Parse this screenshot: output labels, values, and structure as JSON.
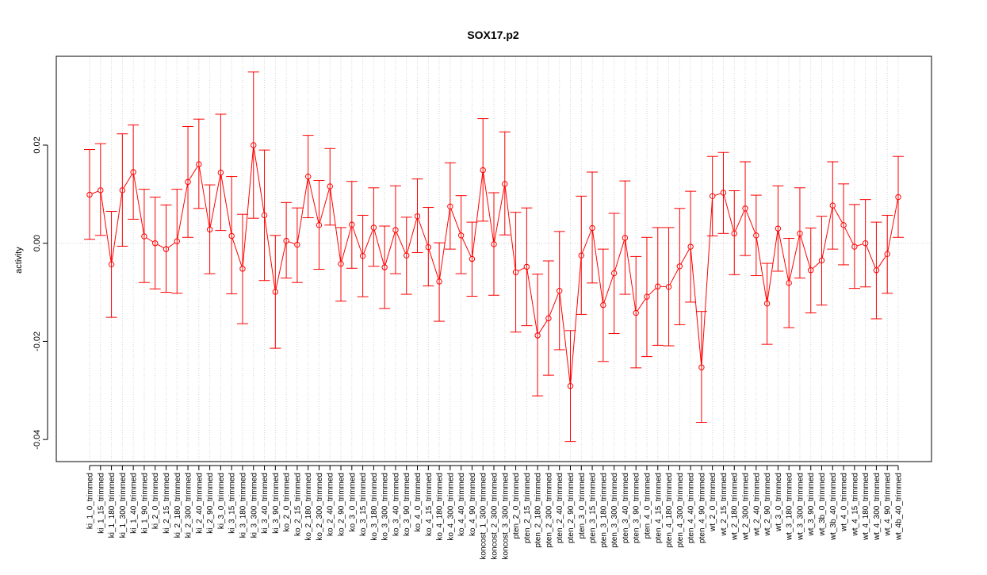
{
  "chart_data": {
    "type": "line",
    "title": "SOX17.p2",
    "xlabel": "",
    "ylabel": "activity",
    "ylim": [
      -0.0445,
      0.0381
    ],
    "y_ticks": [
      -0.04,
      -0.02,
      0.0,
      0.02
    ],
    "y_tick_labels": [
      "-0.04",
      "-0.02",
      "0.00",
      "0.02"
    ],
    "grid": true,
    "reference_line_y": 0.0,
    "color": "#ff0000",
    "series": [
      {
        "categories": [
          "ki_1_0_trimmed",
          "ki_1_15_trimmed",
          "ki_1_180_trimmed",
          "ki_1_300_trimmed",
          "ki_1_40_trimmed",
          "ki_1_90_trimmed",
          "ki_2_0_trimmed",
          "ki_2_15_trimmed",
          "ki_2_180_trimmed",
          "ki_2_300_trimmed",
          "ki_2_40_trimmed",
          "ki_2_90_trimmed",
          "ki_3_0_trimmed",
          "ki_3_15_trimmed",
          "ki_3_180_trimmed",
          "ki_3_300_trimmed",
          "ki_3_40_trimmed",
          "ki_3_90_trimmed",
          "ko_2_0_trimmed",
          "ko_2_15_trimmed",
          "ko_2_180_trimmed",
          "ko_2_300_trimmed",
          "ko_2_40_trimmed",
          "ko_2_90_trimmed",
          "ko_3_0_trimmed",
          "ko_3_15_trimmed",
          "ko_3_180_trimmed",
          "ko_3_300_trimmed",
          "ko_3_40_trimmed",
          "ko_3_90_trimmed",
          "ko_4_0_trimmed",
          "ko_4_15_trimmed",
          "ko_4_180_trimmed",
          "ko_4_300_trimmed",
          "ko_4_40_trimmed",
          "ko_4_90_trimmed",
          "koncost_1_300_trimmed",
          "koncost_2_300_trimmed",
          "koncost_3_300_trimmed",
          "pten_2_0_trimmed",
          "pten_2_15_trimmed",
          "pten_2_180_trimmed",
          "pten_2_300_trimmed",
          "pten_2_40_trimmed",
          "pten_2_90_trimmed",
          "pten_3_0_trimmed",
          "pten_3_15_trimmed",
          "pten_3_180_trimmed",
          "pten_3_300_trimmed",
          "pten_3_40_trimmed",
          "pten_3_90_trimmed",
          "pten_4_0_trimmed",
          "pten_4_15_trimmed",
          "pten_4_180_trimmed",
          "pten_4_300_trimmed",
          "pten_4_40_trimmed",
          "pten_4_90_trimmed",
          "wt_2_0_trimmed",
          "wt_2_15_trimmed",
          "wt_2_180_trimmed",
          "wt_2_300_trimmed",
          "wt_2_40_trimmed",
          "wt_2_90_trimmed",
          "wt_3_0_trimmed",
          "wt_3_180_trimmed",
          "wt_3_300_trimmed",
          "wt_3_90_trimmed",
          "wt_3b_0_trimmed",
          "wt_3b_40_trimmed",
          "wt_4_0_trimmed",
          "wt_4_15_trimmed",
          "wt_4_180_trimmed",
          "wt_4_300_trimmed",
          "wt_4_90_trimmed",
          "wt_4b_40_trimmed"
        ],
        "values": [
          0.0099,
          0.0108,
          -0.0043,
          0.0108,
          0.0145,
          0.0014,
          0.0,
          -0.0012,
          0.0004,
          0.0125,
          0.0161,
          0.0028,
          0.0144,
          0.0015,
          -0.0052,
          0.02,
          0.0057,
          -0.0099,
          0.0005,
          -0.0003,
          0.0136,
          0.0037,
          0.0116,
          -0.0042,
          0.0038,
          -0.0026,
          0.0032,
          -0.0049,
          0.0027,
          -0.0025,
          0.0055,
          -0.0008,
          -0.0078,
          0.0075,
          0.0016,
          -0.0032,
          0.0149,
          -0.0002,
          0.0121,
          -0.0059,
          -0.0048,
          -0.0188,
          -0.0153,
          -0.0097,
          -0.0291,
          -0.0025,
          0.0031,
          -0.0126,
          -0.0061,
          0.0011,
          -0.0142,
          -0.0109,
          -0.0088,
          -0.0089,
          -0.0047,
          -0.0007,
          -0.0253,
          0.0096,
          0.0103,
          0.002,
          0.0071,
          0.0016,
          -0.0123,
          0.003,
          -0.0081,
          0.002,
          -0.0055,
          -0.0035,
          0.0077,
          0.0037,
          -0.0007,
          0.0,
          -0.0055,
          -0.0022,
          0.0094
        ],
        "lower": [
          0.0008,
          0.0016,
          -0.0151,
          -0.0006,
          0.0049,
          -0.008,
          -0.0093,
          -0.01,
          -0.0102,
          0.0012,
          0.0071,
          -0.0062,
          0.0026,
          -0.0103,
          -0.0164,
          0.0051,
          -0.0076,
          -0.0214,
          -0.0071,
          -0.008,
          0.0052,
          -0.0053,
          0.0037,
          -0.0118,
          -0.0051,
          -0.0109,
          -0.0047,
          -0.0133,
          -0.0062,
          -0.0104,
          -0.0019,
          -0.0087,
          -0.0159,
          -0.0012,
          -0.0062,
          -0.0108,
          0.0045,
          -0.0106,
          0.0017,
          -0.0181,
          -0.0168,
          -0.0311,
          -0.0269,
          -0.0217,
          -0.0404,
          -0.0145,
          -0.0081,
          -0.0241,
          -0.0184,
          -0.0104,
          -0.0254,
          -0.0231,
          -0.0208,
          -0.0209,
          -0.0166,
          -0.012,
          -0.0365,
          0.0015,
          0.002,
          -0.0064,
          -0.0025,
          -0.0066,
          -0.0206,
          -0.0057,
          -0.0172,
          -0.0071,
          -0.0142,
          -0.0126,
          -0.0012,
          -0.0044,
          -0.0092,
          -0.0089,
          -0.0154,
          -0.0102,
          0.0012
        ],
        "upper": [
          0.0191,
          0.0203,
          0.0065,
          0.0223,
          0.0241,
          0.011,
          0.0094,
          0.0078,
          0.011,
          0.0238,
          0.0253,
          0.0119,
          0.0263,
          0.0136,
          0.0059,
          0.0349,
          0.019,
          0.0016,
          0.0083,
          0.0072,
          0.022,
          0.0128,
          0.0193,
          0.0032,
          0.0126,
          0.0057,
          0.0113,
          0.0035,
          0.0117,
          0.0053,
          0.0131,
          0.0073,
          0.0001,
          0.0164,
          0.0097,
          0.0043,
          0.0254,
          0.0103,
          0.0227,
          0.0063,
          0.0072,
          -0.0063,
          -0.0036,
          0.0024,
          -0.0178,
          0.0096,
          0.0145,
          -0.0012,
          0.0061,
          0.0127,
          -0.0027,
          0.0012,
          0.0032,
          0.0032,
          0.0071,
          0.0106,
          -0.0139,
          0.0177,
          0.0185,
          0.0107,
          0.0166,
          0.0098,
          -0.0041,
          0.0117,
          0.001,
          0.0113,
          0.0031,
          0.0055,
          0.0166,
          0.0121,
          0.0079,
          0.0089,
          0.0043,
          0.0057,
          0.0177
        ]
      }
    ]
  }
}
